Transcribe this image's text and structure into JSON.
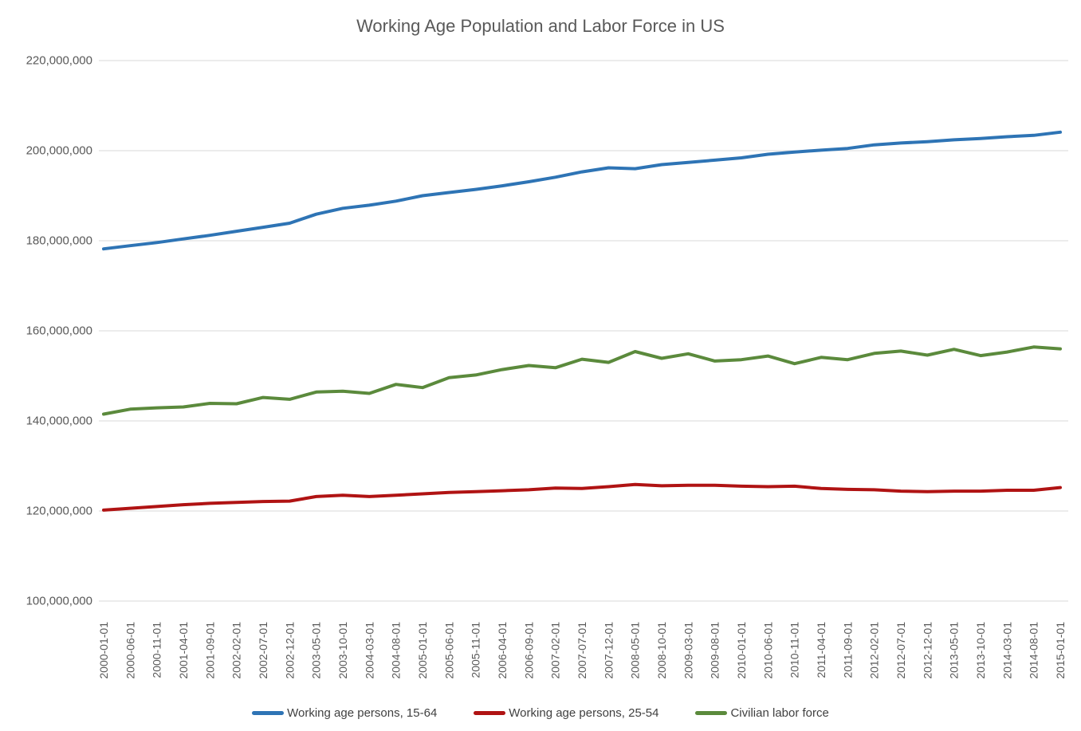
{
  "chart_data": {
    "type": "line",
    "title": "Working Age Population and Labor Force in US",
    "xlabel": "",
    "ylabel": "",
    "ylim": [
      100000000,
      220000000
    ],
    "grid": true,
    "legend_position": "bottom",
    "axis_text_color": "#595959",
    "gridline_color": "#D9D9D9",
    "y_ticks": [
      {
        "value": 100000000,
        "label": "100,000,000"
      },
      {
        "value": 120000000,
        "label": "120,000,000"
      },
      {
        "value": 140000000,
        "label": "140,000,000"
      },
      {
        "value": 160000000,
        "label": "160,000,000"
      },
      {
        "value": 180000000,
        "label": "180,000,000"
      },
      {
        "value": 200000000,
        "label": "200,000,000"
      },
      {
        "value": 220000000,
        "label": "220,000,000"
      }
    ],
    "x": [
      "2000-01-01",
      "2000-06-01",
      "2000-11-01",
      "2001-04-01",
      "2001-09-01",
      "2002-02-01",
      "2002-07-01",
      "2002-12-01",
      "2003-05-01",
      "2003-10-01",
      "2004-03-01",
      "2004-08-01",
      "2005-01-01",
      "2005-06-01",
      "2005-11-01",
      "2006-04-01",
      "2006-09-01",
      "2007-02-01",
      "2007-07-01",
      "2007-12-01",
      "2008-05-01",
      "2008-10-01",
      "2009-03-01",
      "2009-08-01",
      "2010-01-01",
      "2010-06-01",
      "2010-11-01",
      "2011-04-01",
      "2011-09-01",
      "2012-02-01",
      "2012-07-01",
      "2012-12-01",
      "2013-05-01",
      "2013-10-01",
      "2014-03-01",
      "2014-08-01",
      "2015-01-01"
    ],
    "series": [
      {
        "name": "Working age persons, 15-64",
        "color": "#2E74B5",
        "values": [
          178200000,
          178900000,
          179600000,
          180400000,
          181200000,
          182100000,
          183000000,
          183900000,
          185900000,
          187200000,
          187900000,
          188800000,
          190000000,
          190700000,
          191400000,
          192200000,
          193100000,
          194100000,
          195300000,
          196200000,
          196000000,
          196900000,
          197400000,
          197900000,
          198400000,
          199200000,
          199700000,
          200100000,
          200500000,
          201300000,
          201700000,
          202000000,
          202400000,
          202700000,
          203100000,
          203400000,
          204100000
        ]
      },
      {
        "name": "Working age persons, 25-54",
        "color": "#B01313",
        "values": [
          120200000,
          120600000,
          121000000,
          121400000,
          121700000,
          121900000,
          122100000,
          122200000,
          123200000,
          123500000,
          123200000,
          123500000,
          123800000,
          124100000,
          124300000,
          124500000,
          124700000,
          125100000,
          125000000,
          125400000,
          125900000,
          125600000,
          125700000,
          125700000,
          125500000,
          125400000,
          125500000,
          125000000,
          124800000,
          124700000,
          124400000,
          124300000,
          124400000,
          124400000,
          124600000,
          124600000,
          125200000
        ]
      },
      {
        "name": "Civilian labor force",
        "color": "#5B8A3C",
        "values": [
          141500000,
          142600000,
          142900000,
          143100000,
          143900000,
          143800000,
          145200000,
          144800000,
          146400000,
          146600000,
          146100000,
          148100000,
          147400000,
          149600000,
          150200000,
          151400000,
          152300000,
          151800000,
          153700000,
          153000000,
          155400000,
          153900000,
          154900000,
          153300000,
          153600000,
          154400000,
          152700000,
          154100000,
          153600000,
          155000000,
          155500000,
          154600000,
          155900000,
          154500000,
          155300000,
          156400000,
          156000000
        ]
      }
    ]
  }
}
